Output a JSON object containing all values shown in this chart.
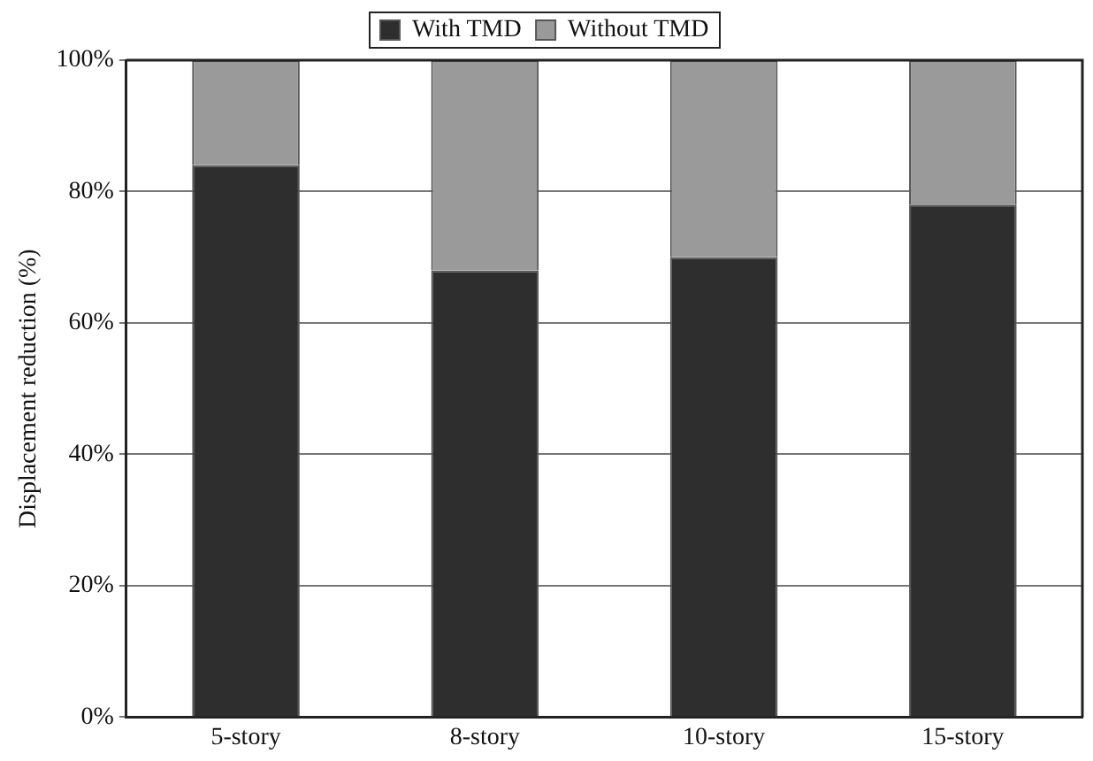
{
  "chart_data": {
    "type": "bar",
    "ylabel": "Displacement reduction (%)",
    "categories": [
      "5-story",
      "8-story",
      "10-story",
      "15-story"
    ],
    "stacked": true,
    "series": [
      {
        "name": "With TMD",
        "color": "#2e2e2e",
        "values": [
          84,
          68,
          70,
          78
        ]
      },
      {
        "name": "Without TMD",
        "color": "#9a9a9a",
        "values": [
          16,
          32,
          30,
          22
        ]
      }
    ],
    "ylim": [
      0,
      100
    ],
    "yticks": [
      {
        "value": 0,
        "label": "0%"
      },
      {
        "value": 20,
        "label": "20%"
      },
      {
        "value": 40,
        "label": "40%"
      },
      {
        "value": 60,
        "label": "60%"
      },
      {
        "value": 80,
        "label": "80%"
      },
      {
        "value": 100,
        "label": "100%"
      }
    ],
    "grid": "y",
    "legend": "top"
  }
}
